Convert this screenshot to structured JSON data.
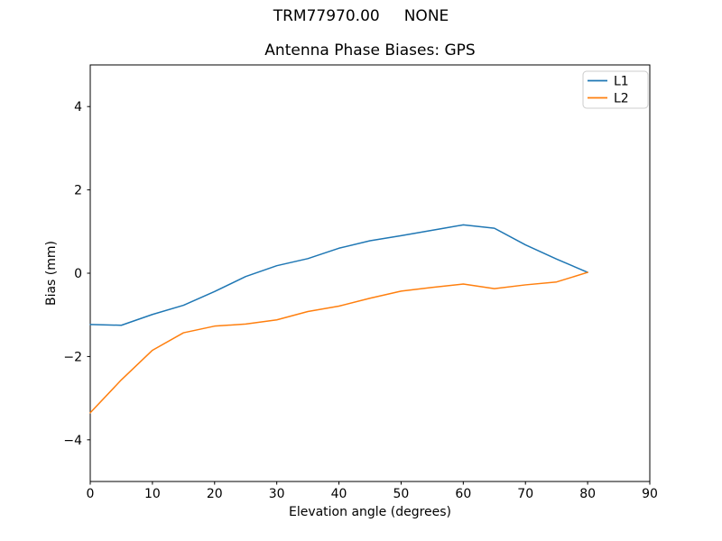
{
  "figure": {
    "suptitle": "TRM77970.00     NONE",
    "axes_title": "Antenna Phase Biases: GPS",
    "xlabel": "Elevation angle (degrees)",
    "ylabel": "Bias (mm)"
  },
  "chart_data": {
    "type": "line",
    "suptitle": "TRM77970.00     NONE",
    "title": "Antenna Phase Biases: GPS",
    "xlabel": "Elevation angle (degrees)",
    "ylabel": "Bias (mm)",
    "xlim": [
      0,
      90
    ],
    "ylim": [
      -5,
      5
    ],
    "xticks": [
      0,
      10,
      20,
      30,
      40,
      50,
      60,
      70,
      80,
      90
    ],
    "yticks": [
      -4,
      -2,
      0,
      2,
      4
    ],
    "grid": false,
    "legend_position": "upper right",
    "x": [
      0,
      5,
      10,
      15,
      20,
      25,
      30,
      35,
      40,
      45,
      50,
      55,
      60,
      65,
      70,
      75,
      80
    ],
    "series": [
      {
        "name": "L1",
        "color": "#1f77b4",
        "values": [
          -1.23,
          -1.25,
          -0.99,
          -0.77,
          -0.44,
          -0.08,
          0.18,
          0.35,
          0.6,
          0.78,
          0.9,
          1.03,
          1.16,
          1.08,
          0.68,
          0.34,
          0.02
        ]
      },
      {
        "name": "L2",
        "color": "#ff7f0e",
        "values": [
          -3.35,
          -2.56,
          -1.85,
          -1.43,
          -1.27,
          -1.22,
          -1.12,
          -0.92,
          -0.79,
          -0.6,
          -0.43,
          -0.34,
          -0.26,
          -0.37,
          -0.28,
          -0.21,
          0.02
        ]
      }
    ],
    "colors": {
      "spine": "#000000",
      "background": "#ffffff",
      "legend_border": "#cccccc"
    }
  }
}
